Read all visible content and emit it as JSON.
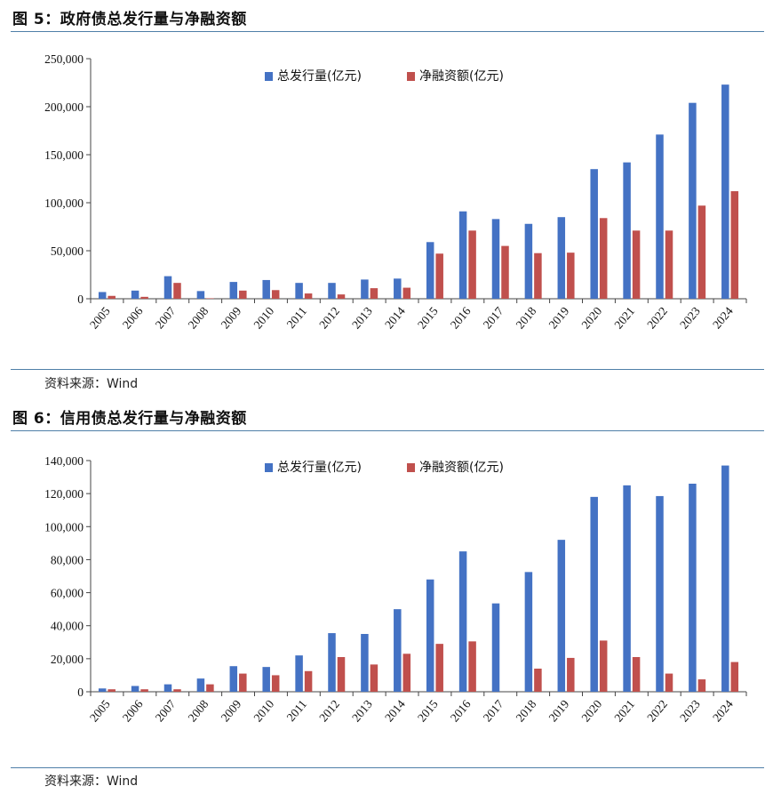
{
  "fig5": {
    "title": "图 5：政府债总发行量与净融资额",
    "source": "资料来源：Wind"
  },
  "fig6": {
    "title": "图 6：信用债总发行量与净融资额",
    "source": "资料来源：Wind"
  },
  "colors": {
    "issuance": "#4472c4",
    "net": "#c0504d",
    "axis": "#444444",
    "rule": "#4f7fa8"
  },
  "chart_data": [
    {
      "type": "bar",
      "title": "图 5：政府债总发行量与净融资额",
      "categories": [
        "2005",
        "2006",
        "2007",
        "2008",
        "2009",
        "2010",
        "2011",
        "2012",
        "2013",
        "2014",
        "2015",
        "2016",
        "2017",
        "2018",
        "2019",
        "2020",
        "2021",
        "2022",
        "2023",
        "2024"
      ],
      "series": [
        {
          "name": "总发行量(亿元)",
          "values": [
            7000,
            8500,
            23500,
            8000,
            17500,
            19500,
            16500,
            16500,
            20000,
            21000,
            59000,
            91000,
            83000,
            78000,
            85000,
            135000,
            142000,
            171000,
            204000,
            223000
          ]
        },
        {
          "name": "净融资额(亿元)",
          "values": [
            3000,
            2000,
            16500,
            500,
            8500,
            9000,
            5500,
            4500,
            11000,
            11500,
            47000,
            71000,
            55000,
            47500,
            48000,
            84000,
            71000,
            71000,
            97000,
            112000
          ]
        }
      ],
      "ylim": [
        0,
        250000
      ],
      "yticks": [
        0,
        50000,
        100000,
        150000,
        200000,
        250000
      ],
      "ytick_labels": [
        "0",
        "50,000",
        "100,000",
        "150,000",
        "200,000",
        "250,000"
      ],
      "legend": "top-center",
      "grid": false
    },
    {
      "type": "bar",
      "title": "图 6：信用债总发行量与净融资额",
      "categories": [
        "2005",
        "2006",
        "2007",
        "2008",
        "2009",
        "2010",
        "2011",
        "2012",
        "2013",
        "2014",
        "2015",
        "2016",
        "2017",
        "2018",
        "2019",
        "2020",
        "2021",
        "2022",
        "2023",
        "2024"
      ],
      "series": [
        {
          "name": "总发行量(亿元)",
          "values": [
            2000,
            3500,
            4500,
            8000,
            15500,
            15000,
            22000,
            35500,
            35000,
            50000,
            68000,
            85000,
            53500,
            72500,
            92000,
            118000,
            125000,
            118500,
            126000,
            137000
          ]
        },
        {
          "name": "净融资额(亿元)",
          "values": [
            1500,
            1500,
            1500,
            4500,
            11000,
            10000,
            12500,
            21000,
            16500,
            23000,
            29000,
            30500,
            0,
            14000,
            20500,
            31000,
            21000,
            11000,
            7500,
            18000
          ]
        }
      ],
      "ylim": [
        0,
        140000
      ],
      "yticks": [
        0,
        20000,
        40000,
        60000,
        80000,
        100000,
        120000,
        140000
      ],
      "ytick_labels": [
        "0",
        "20,000",
        "40,000",
        "60,000",
        "80,000",
        "100,000",
        "120,000",
        "140,000"
      ],
      "legend": "top-center",
      "grid": false
    }
  ]
}
